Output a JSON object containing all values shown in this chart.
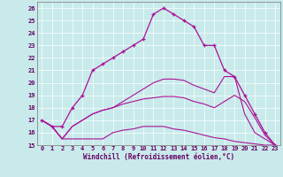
{
  "xlabel": "Windchill (Refroidissement éolien,°C)",
  "xlim": [
    -0.5,
    23.5
  ],
  "ylim": [
    15,
    26.5
  ],
  "yticks": [
    15,
    16,
    17,
    18,
    19,
    20,
    21,
    22,
    23,
    24,
    25,
    26
  ],
  "xticks": [
    0,
    1,
    2,
    3,
    4,
    5,
    6,
    7,
    8,
    9,
    10,
    11,
    12,
    13,
    14,
    15,
    16,
    17,
    18,
    19,
    20,
    21,
    22,
    23
  ],
  "background_color": "#c8eaea",
  "line_color": "#aa1199",
  "line1_x": [
    0,
    1,
    2,
    3,
    4,
    5,
    6,
    7,
    8,
    9,
    10,
    11,
    12,
    13,
    14,
    15,
    16,
    17,
    18,
    19,
    20,
    21,
    22,
    23
  ],
  "line1_y": [
    17.0,
    16.5,
    16.5,
    18.0,
    19.0,
    21.0,
    21.5,
    22.0,
    22.5,
    23.0,
    23.5,
    25.5,
    26.0,
    25.5,
    25.0,
    24.5,
    23.0,
    23.0,
    21.0,
    20.5,
    19.0,
    17.5,
    16.0,
    15.0
  ],
  "line2_x": [
    0,
    1,
    2,
    3,
    4,
    5,
    6,
    7,
    8,
    9,
    10,
    11,
    12,
    13,
    14,
    15,
    16,
    17,
    18,
    19,
    20,
    21,
    22,
    23
  ],
  "line2_y": [
    17.0,
    16.5,
    15.5,
    15.5,
    15.5,
    15.5,
    15.5,
    16.0,
    16.2,
    16.3,
    16.5,
    16.5,
    16.5,
    16.3,
    16.2,
    16.0,
    15.8,
    15.6,
    15.5,
    15.3,
    15.2,
    15.1,
    15.0,
    15.0
  ],
  "line3_x": [
    0,
    1,
    2,
    3,
    4,
    5,
    6,
    7,
    8,
    9,
    10,
    11,
    12,
    13,
    14,
    15,
    16,
    17,
    18,
    19,
    20,
    21,
    22,
    23
  ],
  "line3_y": [
    17.0,
    16.5,
    15.5,
    16.5,
    17.0,
    17.5,
    17.8,
    18.0,
    18.3,
    18.5,
    18.7,
    18.8,
    18.9,
    18.9,
    18.8,
    18.5,
    18.3,
    18.0,
    18.5,
    19.0,
    18.5,
    17.2,
    15.8,
    15.0
  ],
  "line4_x": [
    0,
    1,
    2,
    3,
    4,
    5,
    6,
    7,
    8,
    9,
    10,
    11,
    12,
    13,
    14,
    15,
    16,
    17,
    18,
    19,
    20,
    21,
    22,
    23
  ],
  "line4_y": [
    17.0,
    16.5,
    15.5,
    16.5,
    17.0,
    17.5,
    17.8,
    18.0,
    18.5,
    19.0,
    19.5,
    20.0,
    20.3,
    20.3,
    20.2,
    19.8,
    19.5,
    19.2,
    20.5,
    20.5,
    17.5,
    16.0,
    15.5,
    15.0
  ]
}
